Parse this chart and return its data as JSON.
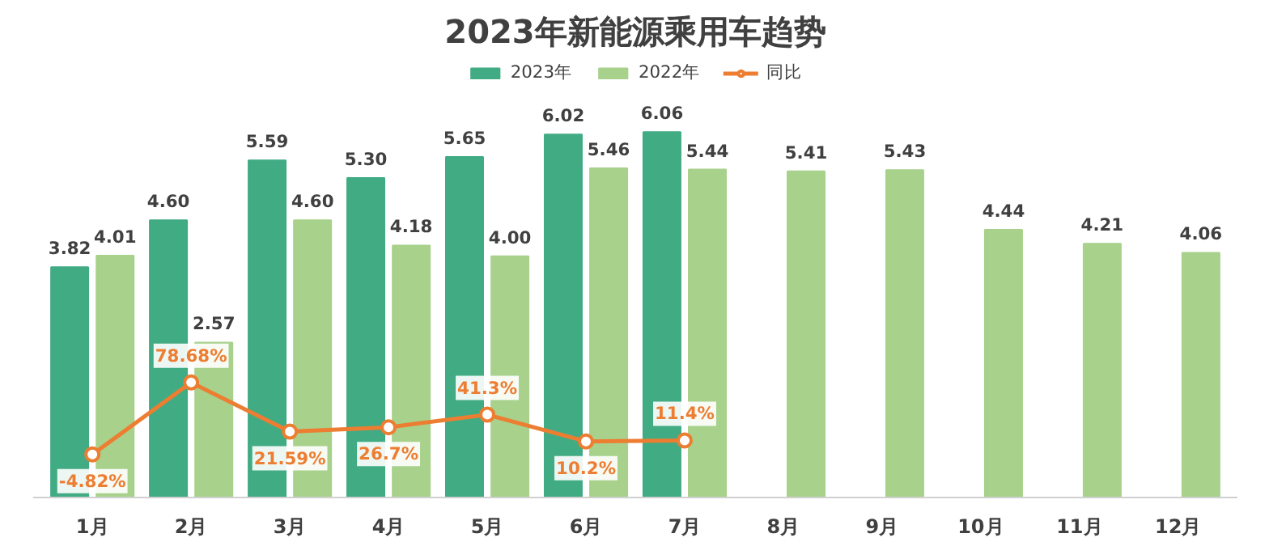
{
  "chart_data": {
    "type": "bar",
    "title": "2023年新能源乘用车趋势",
    "categories": [
      "1月",
      "2月",
      "3月",
      "4月",
      "5月",
      "6月",
      "7月",
      "8月",
      "9月",
      "10月",
      "11月",
      "12月"
    ],
    "series": [
      {
        "name": "2023年",
        "color": "#41ab84",
        "values": [
          3.82,
          4.6,
          5.59,
          5.3,
          5.65,
          6.02,
          6.06,
          null,
          null,
          null,
          null,
          null
        ],
        "value_labels": [
          "3.82",
          "4.60",
          "5.59",
          "5.30",
          "5.65",
          "6.02",
          "6.06",
          null,
          null,
          null,
          null,
          null
        ]
      },
      {
        "name": "2022年",
        "color": "#a8d18c",
        "values": [
          4.01,
          2.57,
          4.6,
          4.18,
          4.0,
          5.46,
          5.44,
          5.41,
          5.43,
          4.44,
          4.21,
          4.06
        ],
        "value_labels": [
          "4.01",
          "2.57",
          "4.60",
          "4.18",
          "4.00",
          "5.46",
          "5.44",
          "5.41",
          "5.43",
          "4.44",
          "4.21",
          "4.06"
        ]
      },
      {
        "name": "同比",
        "type": "line",
        "axis": "y2",
        "color": "#ed7d31",
        "marker": "circle",
        "values": [
          -4.82,
          78.68,
          21.59,
          26.7,
          41.3,
          10.2,
          11.4,
          null,
          null,
          null,
          null,
          null
        ],
        "value_labels": [
          "-4.82%",
          "78.68%",
          "21.59%",
          "26.7%",
          "41.3%",
          "10.2%",
          "11.4%",
          null,
          null,
          null,
          null,
          null
        ]
      }
    ],
    "legend": "top",
    "grid": false,
    "tick_labels": "x"
  }
}
